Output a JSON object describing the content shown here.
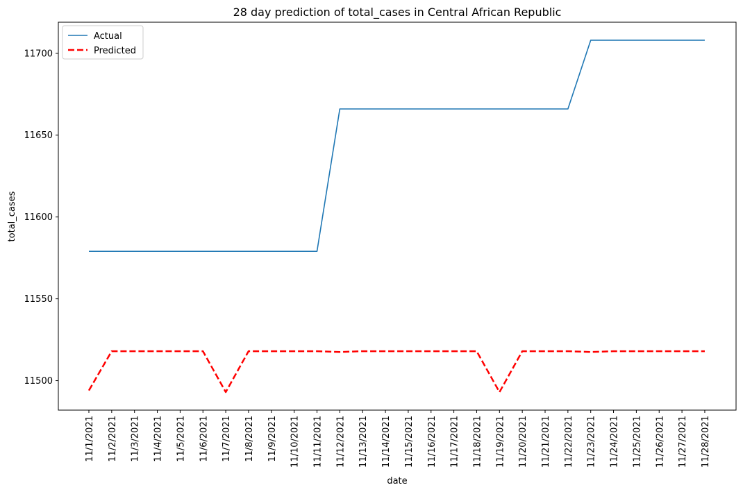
{
  "chart_data": {
    "type": "line",
    "title": "28 day prediction of total_cases in Central African Republic",
    "xlabel": "date",
    "ylabel": "total_cases",
    "categories": [
      "11/1/2021",
      "11/2/2021",
      "11/3/2021",
      "11/4/2021",
      "11/5/2021",
      "11/6/2021",
      "11/7/2021",
      "11/8/2021",
      "11/9/2021",
      "11/10/2021",
      "11/11/2021",
      "11/12/2021",
      "11/13/2021",
      "11/14/2021",
      "11/15/2021",
      "11/16/2021",
      "11/17/2021",
      "11/18/2021",
      "11/19/2021",
      "11/20/2021",
      "11/21/2021",
      "11/22/2021",
      "11/23/2021",
      "11/24/2021",
      "11/25/2021",
      "11/26/2021",
      "11/27/2021",
      "11/28/2021"
    ],
    "yticks": [
      11500,
      11550,
      11600,
      11650,
      11700
    ],
    "ylim": [
      11482,
      11719
    ],
    "grid": false,
    "legend_position": "top-left",
    "series": [
      {
        "name": "Actual",
        "color": "#1f77b4",
        "style": "solid",
        "values": [
          11579,
          11579,
          11579,
          11579,
          11579,
          11579,
          11579,
          11579,
          11579,
          11579,
          11579,
          11666,
          11666,
          11666,
          11666,
          11666,
          11666,
          11666,
          11666,
          11666,
          11666,
          11666,
          11708,
          11708,
          11708,
          11708,
          11708,
          11708
        ]
      },
      {
        "name": "Predicted",
        "color": "#ff0000",
        "style": "dashed",
        "values": [
          11494,
          11518,
          11518,
          11518,
          11518,
          11518,
          11493,
          11518,
          11518,
          11518,
          11518,
          11517.5,
          11518,
          11518,
          11518,
          11518,
          11518,
          11518,
          11493,
          11518,
          11518,
          11518,
          11517.5,
          11518,
          11518,
          11518,
          11518,
          11518
        ]
      }
    ]
  }
}
